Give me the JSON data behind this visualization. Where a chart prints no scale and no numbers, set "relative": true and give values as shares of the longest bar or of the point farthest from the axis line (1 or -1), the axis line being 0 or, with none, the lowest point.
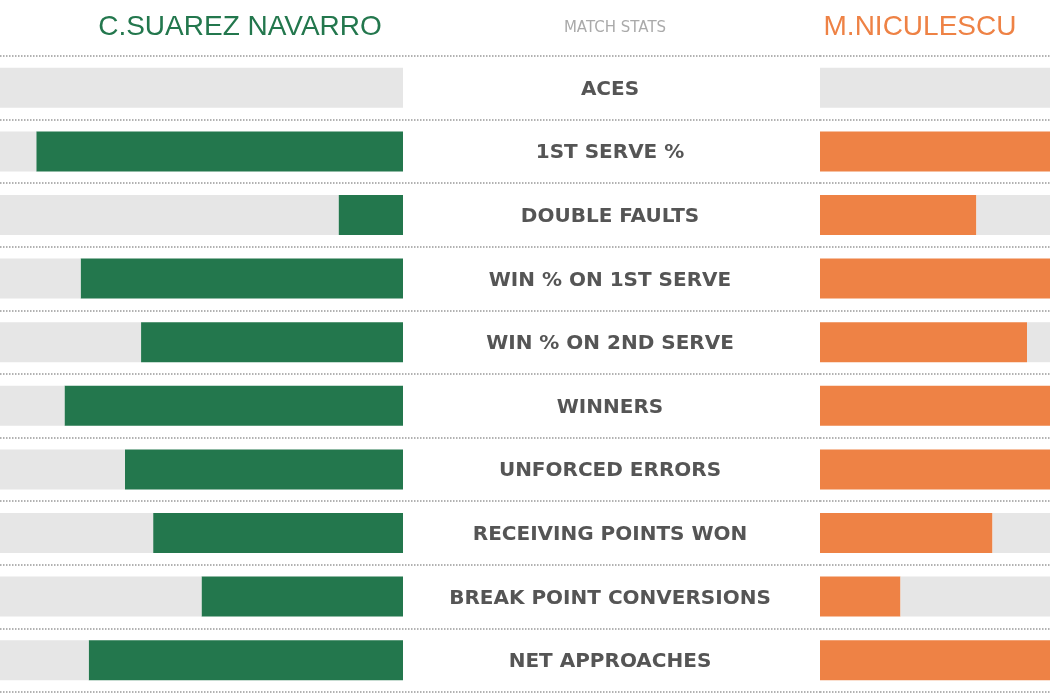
{
  "chart_data": [
    {
      "type": "bar",
      "orientation": "horizontal",
      "relative": true,
      "stacked": true,
      "title": "MATCH STATS",
      "grid": "y",
      "categories": [
        "ACES",
        "1ST SERVE %",
        "DOUBLE FAULTS",
        "WIN % ON 1ST SERVE",
        "WIN % ON 2ND SERVE",
        "WINNERS",
        "UNFORCED ERRORS",
        "RECEIVING POINTS WON",
        "BREAK POINT CONVERSIONS",
        "NET APPROACHES"
      ],
      "series": [
        {
          "name": "C.SUAREZ NAVARRO",
          "color": "#23774d",
          "values": [
            0,
            0.91,
            0.16,
            0.8,
            0.65,
            0.84,
            0.69,
            0.62,
            0.5,
            0.78
          ]
        },
        {
          "color": "#e6e6e6",
          "values": [
            1,
            0.09,
            0.84,
            0.2,
            0.35,
            0.16,
            0.31,
            0.38,
            0.5,
            0.22
          ]
        }
      ]
    },
    {
      "type": "bar",
      "orientation": "horizontal",
      "relative": true,
      "stacked": true,
      "grid": "y",
      "categories": [
        null,
        null,
        null,
        null,
        null,
        null,
        null,
        null,
        null,
        null
      ],
      "series": [
        {
          "name": "M.NICULESCU",
          "color": "#ee8245",
          "values": [
            0,
            1,
            0.68,
            1,
            0.9,
            1,
            1,
            0.75,
            0.35,
            1
          ]
        },
        {
          "color": "#e6e6e6",
          "values": [
            1,
            0,
            0.32,
            0,
            0.1,
            0,
            0,
            0.25,
            0.65,
            0
          ]
        }
      ]
    }
  ]
}
